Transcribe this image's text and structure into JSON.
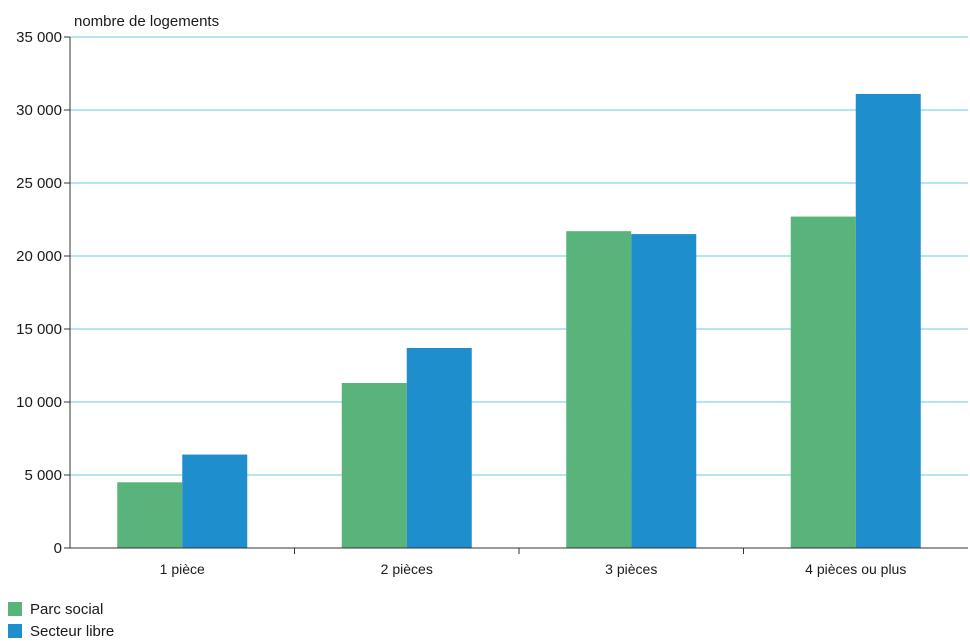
{
  "chart_data": {
    "type": "bar",
    "title": "",
    "ylabel": "nombre de logements",
    "xlabel": "",
    "categories": [
      "1 pièce",
      "2 pièces",
      "3 pièces",
      "4 pièces ou plus"
    ],
    "series": [
      {
        "name": "Parc social",
        "color": "#58b47a",
        "values": [
          4500,
          11300,
          21700,
          22700
        ]
      },
      {
        "name": "Secteur libre",
        "color": "#1e8ecd",
        "values": [
          6400,
          13700,
          21500,
          31100
        ]
      }
    ],
    "ylim": [
      0,
      35000
    ],
    "yticks": [
      0,
      5000,
      10000,
      15000,
      20000,
      25000,
      30000,
      35000
    ],
    "ytick_labels": [
      "0",
      "5 000",
      "10 000",
      "15 000",
      "20 000",
      "25 000",
      "30 000",
      "35 000"
    ],
    "grid": true,
    "grid_color": "#6dcbe0",
    "legend_position": "bottom-left"
  }
}
